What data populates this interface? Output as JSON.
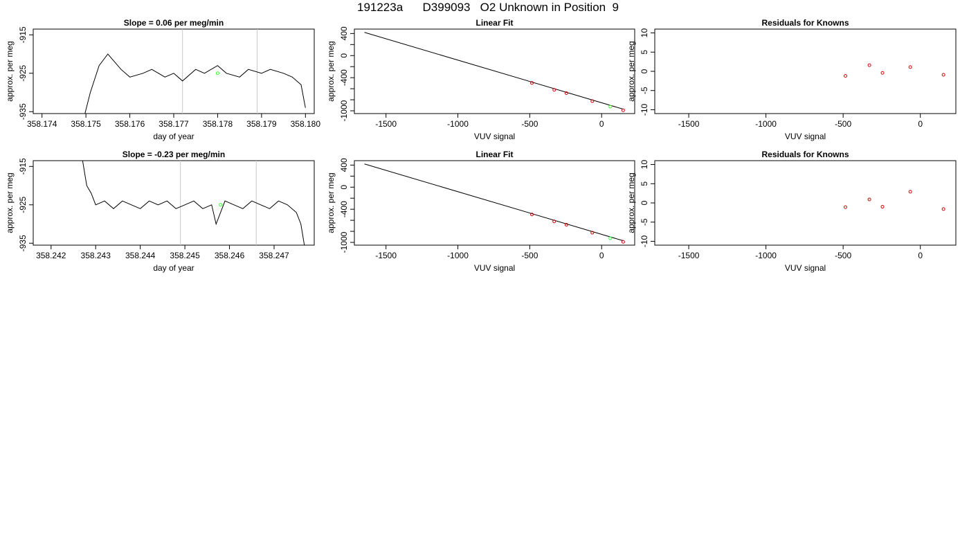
{
  "page_title": "191223a      D399093   O2 Unknown in Position  9",
  "colors": {
    "trace": "#000000",
    "marker_unknown": "#33ff33",
    "marker_known": "#cc0000",
    "window_lines": "#c8c8c8",
    "fit_line": "#000000"
  },
  "chart_data": [
    {
      "type": "line",
      "title": "Slope =  0.06  per meg/min",
      "xlabel": "day of year",
      "ylabel": "approx. per meg",
      "xlim": [
        358.1738,
        358.1802
      ],
      "ylim": [
        -935.5,
        -913.5
      ],
      "xticks": [
        358.174,
        358.175,
        358.176,
        358.177,
        358.178,
        358.179,
        358.18
      ],
      "xtick_labels": [
        "358.174",
        "358.175",
        "358.176",
        "358.177",
        "358.178",
        "358.179",
        "358.180"
      ],
      "yticks": [
        -935,
        -925,
        -915
      ],
      "ytick_labels": [
        "-935",
        "-925",
        "-915"
      ],
      "window_lines_x": [
        358.1772,
        358.1789
      ],
      "trace": {
        "x": [
          358.1749,
          358.1751,
          358.1753,
          358.1755,
          358.1758,
          358.176,
          358.1763,
          358.1765,
          358.1768,
          358.177,
          358.1772,
          358.1775,
          358.1777,
          358.178,
          358.1782,
          358.1785,
          358.1787,
          358.179,
          358.1792,
          358.1795,
          358.1797,
          358.1799,
          358.18
        ],
        "y": [
          -939,
          -930,
          -923,
          -920,
          -924,
          -926,
          -925,
          -924,
          -926,
          -925,
          -927,
          -924,
          -925,
          -923,
          -925,
          -926,
          -924,
          -925,
          -924,
          -925,
          -926,
          -928,
          -934
        ]
      },
      "unknown_point": {
        "x": 358.178,
        "y": -925
      }
    },
    {
      "type": "scatter",
      "title": "Linear Fit",
      "xlabel": "VUV signal",
      "ylabel": "approx. per meg",
      "xlim": [
        -1720,
        230
      ],
      "ylim": [
        -1050,
        480
      ],
      "xticks": [
        -1500,
        -1000,
        -500,
        0
      ],
      "xtick_labels": [
        "-1500",
        "-1000",
        "-500",
        "0"
      ],
      "yticks": [
        -1000,
        -800,
        -600,
        -400,
        -200,
        0,
        200,
        400
      ],
      "ytick_labels": [
        "-1000",
        "",
        "",
        "-400",
        "",
        "0",
        "",
        "400"
      ],
      "fit_line": {
        "x": [
          -1650,
          150
        ],
        "y": [
          420,
          -970
        ]
      },
      "knowns": {
        "x": [
          -485,
          -330,
          -245,
          -65,
          150
        ],
        "y": [
          -495,
          -620,
          -680,
          -825,
          -990
        ]
      },
      "unknown": {
        "x": 60,
        "y": -925
      }
    },
    {
      "type": "scatter",
      "title": "Residuals for Knowns",
      "xlabel": "VUV signal",
      "ylabel": "approx. per meg",
      "xlim": [
        -1720,
        230
      ],
      "ylim": [
        -11,
        11
      ],
      "xticks": [
        -1500,
        -1000,
        -500,
        0
      ],
      "xtick_labels": [
        "-1500",
        "-1000",
        "-500",
        "0"
      ],
      "yticks": [
        -10,
        -5,
        0,
        5,
        10
      ],
      "ytick_labels": [
        "-10",
        "-5",
        "0",
        "5",
        "10"
      ],
      "knowns": {
        "x": [
          -485,
          -330,
          -245,
          -65,
          150
        ],
        "y": [
          -1.2,
          1.6,
          -0.4,
          1.1,
          -0.9
        ]
      }
    },
    {
      "type": "line",
      "title": "Slope =  -0.23  per meg/min",
      "xlabel": "day of year",
      "ylabel": "approx. per meg",
      "xlim": [
        358.2416,
        358.2479
      ],
      "ylim": [
        -935.5,
        -913.5
      ],
      "xticks": [
        358.242,
        358.243,
        358.244,
        358.245,
        358.246,
        358.247
      ],
      "xtick_labels": [
        "358.242",
        "358.243",
        "358.244",
        "358.245",
        "358.246",
        "358.247"
      ],
      "yticks": [
        -935,
        -925,
        -915
      ],
      "ytick_labels": [
        "-935",
        "-925",
        "-915"
      ],
      "window_lines_x": [
        358.2449,
        358.2466
      ],
      "trace": {
        "x": [
          358.2427,
          358.2428,
          358.2429,
          358.243,
          358.2432,
          358.2434,
          358.2436,
          358.2438,
          358.244,
          358.2442,
          358.2444,
          358.2446,
          358.2448,
          358.245,
          358.2452,
          358.2454,
          358.2456,
          358.2457,
          358.2459,
          358.2461,
          358.2463,
          358.2465,
          358.2467,
          358.2469,
          358.2471,
          358.2473,
          358.2475,
          358.2476,
          358.2477
        ],
        "y": [
          -913,
          -920,
          -922,
          -925,
          -924,
          -926,
          -924,
          -925,
          -926,
          -924,
          -925,
          -924,
          -926,
          -925,
          -924,
          -926,
          -925,
          -930,
          -924,
          -925,
          -926,
          -924,
          -925,
          -926,
          -924,
          -925,
          -927,
          -930,
          -937
        ]
      },
      "unknown_point": {
        "x": 358.2458,
        "y": -925
      }
    },
    {
      "type": "scatter",
      "title": "Linear Fit",
      "xlabel": "VUV signal",
      "ylabel": "approx. per meg",
      "xlim": [
        -1720,
        230
      ],
      "ylim": [
        -1050,
        480
      ],
      "xticks": [
        -1500,
        -1000,
        -500,
        0
      ],
      "xtick_labels": [
        "-1500",
        "-1000",
        "-500",
        "0"
      ],
      "yticks": [
        -1000,
        -800,
        -600,
        -400,
        -200,
        0,
        200,
        400
      ],
      "ytick_labels": [
        "-1000",
        "",
        "",
        "-400",
        "",
        "0",
        "",
        "400"
      ],
      "fit_line": {
        "x": [
          -1650,
          150
        ],
        "y": [
          420,
          -970
        ]
      },
      "knowns": {
        "x": [
          -485,
          -330,
          -245,
          -65,
          150
        ],
        "y": [
          -495,
          -620,
          -680,
          -825,
          -990
        ]
      },
      "unknown": {
        "x": 60,
        "y": -925
      }
    },
    {
      "type": "scatter",
      "title": "Residuals for Knowns",
      "xlabel": "VUV signal",
      "ylabel": "approx. per meg",
      "xlim": [
        -1720,
        230
      ],
      "ylim": [
        -11,
        11
      ],
      "xticks": [
        -1500,
        -1000,
        -500,
        0
      ],
      "xtick_labels": [
        "-1500",
        "-1000",
        "-500",
        "0"
      ],
      "yticks": [
        -10,
        -5,
        0,
        5,
        10
      ],
      "ytick_labels": [
        "-10",
        "-5",
        "0",
        "5",
        "10"
      ],
      "knowns": {
        "x": [
          -485,
          -330,
          -245,
          -65,
          150
        ],
        "y": [
          -1.1,
          0.9,
          -1.0,
          2.9,
          -1.6
        ]
      }
    }
  ]
}
